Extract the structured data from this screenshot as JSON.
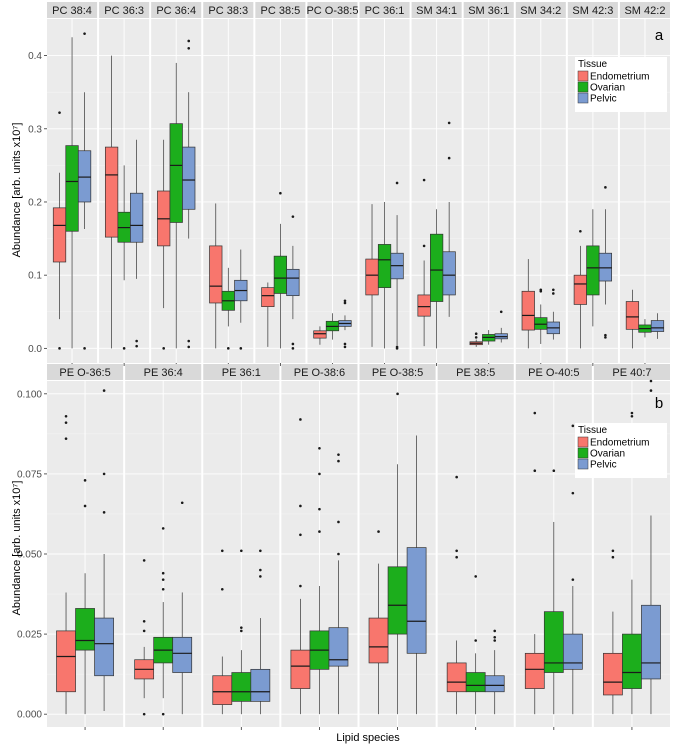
{
  "figure": {
    "xlabel": "Lipid species",
    "legend_title": "Tissue",
    "tissues": [
      "Endometrium",
      "Ovarian",
      "Pelvic"
    ],
    "colors": {
      "Endometrium": "#f8766d",
      "Ovarian": "#1cae1c",
      "Pelvic": "#7b9bd1"
    }
  },
  "chart_data": [
    {
      "type": "boxplot",
      "panel_label": "a",
      "ylabel": "Abundance [arb. units x10⁷]",
      "ylim": [
        -0.02,
        0.45
      ],
      "yticks": [
        0.0,
        0.1,
        0.2,
        0.3,
        0.4
      ],
      "ytick_labels": [
        "0.0",
        "0.1",
        "0.2",
        "0.3",
        "0.4"
      ],
      "facets": [
        {
          "name": "PC 38:4",
          "boxes": [
            {
              "tissue": "Endometrium",
              "min": 0.04,
              "q1": 0.118,
              "median": 0.168,
              "q3": 0.192,
              "max": 0.24,
              "outliers": [
                0.322,
                0.0
              ]
            },
            {
              "tissue": "Ovarian",
              "min": 0.0,
              "q1": 0.16,
              "median": 0.228,
              "q3": 0.277,
              "max": 0.425,
              "outliers": []
            },
            {
              "tissue": "Pelvic",
              "min": 0.163,
              "q1": 0.2,
              "median": 0.234,
              "q3": 0.27,
              "max": 0.35,
              "outliers": [
                0.43,
                0.0
              ]
            }
          ]
        },
        {
          "name": "PC 36:3",
          "boxes": [
            {
              "tissue": "Endometrium",
              "min": 0.0,
              "q1": 0.152,
              "median": 0.237,
              "q3": 0.275,
              "max": 0.4,
              "outliers": []
            },
            {
              "tissue": "Ovarian",
              "min": 0.093,
              "q1": 0.145,
              "median": 0.165,
              "q3": 0.186,
              "max": 0.25,
              "outliers": [
                0.0
              ]
            },
            {
              "tissue": "Pelvic",
              "min": 0.095,
              "q1": 0.145,
              "median": 0.168,
              "q3": 0.212,
              "max": 0.285,
              "outliers": [
                0.01,
                0.003
              ]
            }
          ]
        },
        {
          "name": "PC 36:4",
          "boxes": [
            {
              "tissue": "Endometrium",
              "min": 0.055,
              "q1": 0.14,
              "median": 0.177,
              "q3": 0.215,
              "max": 0.285,
              "outliers": [
                0.0
              ]
            },
            {
              "tissue": "Ovarian",
              "min": 0.0,
              "q1": 0.172,
              "median": 0.25,
              "q3": 0.307,
              "max": 0.39,
              "outliers": []
            },
            {
              "tissue": "Pelvic",
              "min": 0.15,
              "q1": 0.19,
              "median": 0.23,
              "q3": 0.275,
              "max": 0.35,
              "outliers": [
                0.42,
                0.41,
                0.01,
                0.002
              ]
            }
          ]
        },
        {
          "name": "PC 38:3",
          "boxes": [
            {
              "tissue": "Endometrium",
              "min": 0.0,
              "q1": 0.062,
              "median": 0.085,
              "q3": 0.14,
              "max": 0.198,
              "outliers": []
            },
            {
              "tissue": "Ovarian",
              "min": 0.03,
              "q1": 0.052,
              "median": 0.065,
              "q3": 0.078,
              "max": 0.11,
              "outliers": [
                0.0
              ]
            },
            {
              "tissue": "Pelvic",
              "min": 0.035,
              "q1": 0.065,
              "median": 0.079,
              "q3": 0.093,
              "max": 0.135,
              "outliers": [
                0.0
              ]
            }
          ]
        },
        {
          "name": "PC 38:5",
          "boxes": [
            {
              "tissue": "Endometrium",
              "min": 0.002,
              "q1": 0.057,
              "median": 0.072,
              "q3": 0.083,
              "max": 0.09,
              "outliers": []
            },
            {
              "tissue": "Ovarian",
              "min": 0.0,
              "q1": 0.075,
              "median": 0.096,
              "q3": 0.126,
              "max": 0.17,
              "outliers": [
                0.212
              ]
            },
            {
              "tissue": "Pelvic",
              "min": 0.04,
              "q1": 0.072,
              "median": 0.096,
              "q3": 0.108,
              "max": 0.14,
              "outliers": [
                0.18,
                0.006,
                0.0
              ]
            }
          ]
        },
        {
          "name": "PC O-38:5",
          "boxes": [
            {
              "tissue": "Endometrium",
              "min": 0.005,
              "q1": 0.014,
              "median": 0.02,
              "q3": 0.024,
              "max": 0.03,
              "outliers": []
            },
            {
              "tissue": "Ovarian",
              "min": 0.012,
              "q1": 0.024,
              "median": 0.03,
              "q3": 0.037,
              "max": 0.048,
              "outliers": []
            },
            {
              "tissue": "Pelvic",
              "min": 0.025,
              "q1": 0.03,
              "median": 0.034,
              "q3": 0.038,
              "max": 0.045,
              "outliers": [
                0.065,
                0.062,
                0.006,
                0.002
              ]
            }
          ]
        },
        {
          "name": "PC 36:1",
          "boxes": [
            {
              "tissue": "Endometrium",
              "min": 0.002,
              "q1": 0.073,
              "median": 0.1,
              "q3": 0.122,
              "max": 0.197,
              "outliers": []
            },
            {
              "tissue": "Ovarian",
              "min": 0.0,
              "q1": 0.083,
              "median": 0.121,
              "q3": 0.142,
              "max": 0.2,
              "outliers": []
            },
            {
              "tissue": "Pelvic",
              "min": 0.004,
              "q1": 0.095,
              "median": 0.113,
              "q3": 0.13,
              "max": 0.182,
              "outliers": [
                0.226,
                0.002,
                0.0
              ]
            }
          ]
        },
        {
          "name": "SM 34:1",
          "boxes": [
            {
              "tissue": "Endometrium",
              "min": 0.003,
              "q1": 0.044,
              "median": 0.057,
              "q3": 0.073,
              "max": 0.12,
              "outliers": [
                0.23,
                0.14
              ]
            },
            {
              "tissue": "Ovarian",
              "min": 0.0,
              "q1": 0.064,
              "median": 0.107,
              "q3": 0.156,
              "max": 0.19,
              "outliers": []
            },
            {
              "tissue": "Pelvic",
              "min": 0.043,
              "q1": 0.073,
              "median": 0.1,
              "q3": 0.132,
              "max": 0.2,
              "outliers": [
                0.308,
                0.26
              ]
            }
          ]
        },
        {
          "name": "SM 36:1",
          "boxes": [
            {
              "tissue": "Endometrium",
              "min": 0.002,
              "q1": 0.005,
              "median": 0.007,
              "q3": 0.009,
              "max": 0.012,
              "outliers": [
                0.02,
                0.015
              ]
            },
            {
              "tissue": "Ovarian",
              "min": 0.005,
              "q1": 0.01,
              "median": 0.015,
              "q3": 0.019,
              "max": 0.025,
              "outliers": []
            },
            {
              "tissue": "Pelvic",
              "min": 0.008,
              "q1": 0.013,
              "median": 0.016,
              "q3": 0.02,
              "max": 0.028,
              "outliers": [
                0.05
              ]
            }
          ]
        },
        {
          "name": "SM 34:2",
          "boxes": [
            {
              "tissue": "Endometrium",
              "min": 0.0,
              "q1": 0.025,
              "median": 0.045,
              "q3": 0.078,
              "max": 0.122,
              "outliers": []
            },
            {
              "tissue": "Ovarian",
              "min": 0.006,
              "q1": 0.026,
              "median": 0.033,
              "q3": 0.042,
              "max": 0.06,
              "outliers": [
                0.08,
                0.078
              ]
            },
            {
              "tissue": "Pelvic",
              "min": 0.012,
              "q1": 0.02,
              "median": 0.028,
              "q3": 0.036,
              "max": 0.05,
              "outliers": [
                0.08,
                0.075
              ]
            }
          ]
        },
        {
          "name": "SM 42:3",
          "boxes": [
            {
              "tissue": "Endometrium",
              "min": 0.0,
              "q1": 0.06,
              "median": 0.088,
              "q3": 0.1,
              "max": 0.14,
              "outliers": [
                0.16
              ]
            },
            {
              "tissue": "Ovarian",
              "min": 0.03,
              "q1": 0.073,
              "median": 0.11,
              "q3": 0.14,
              "max": 0.19,
              "outliers": []
            },
            {
              "tissue": "Pelvic",
              "min": 0.06,
              "q1": 0.092,
              "median": 0.11,
              "q3": 0.13,
              "max": 0.19,
              "outliers": [
                0.22,
                0.018,
                0.015
              ]
            }
          ]
        },
        {
          "name": "SM 42:2",
          "boxes": [
            {
              "tissue": "Endometrium",
              "min": 0.0,
              "q1": 0.026,
              "median": 0.043,
              "q3": 0.064,
              "max": 0.08,
              "outliers": []
            },
            {
              "tissue": "Ovarian",
              "min": 0.015,
              "q1": 0.022,
              "median": 0.027,
              "q3": 0.032,
              "max": 0.04,
              "outliers": []
            },
            {
              "tissue": "Pelvic",
              "min": 0.013,
              "q1": 0.023,
              "median": 0.028,
              "q3": 0.038,
              "max": 0.048,
              "outliers": []
            }
          ]
        }
      ]
    },
    {
      "type": "boxplot",
      "panel_label": "b",
      "ylabel": "Abundance [arb. units x10⁷]",
      "ylim": [
        -0.004,
        0.104
      ],
      "yticks": [
        0.0,
        0.025,
        0.05,
        0.075,
        0.1
      ],
      "ytick_labels": [
        "0.000",
        "0.025",
        "0.050",
        "0.075",
        "0.100"
      ],
      "facets": [
        {
          "name": "PE O-36:5",
          "boxes": [
            {
              "tissue": "Endometrium",
              "min": 0.0,
              "q1": 0.007,
              "median": 0.018,
              "q3": 0.026,
              "max": 0.038,
              "outliers": [
                0.093,
                0.091,
                0.086
              ]
            },
            {
              "tissue": "Ovarian",
              "min": 0.0,
              "q1": 0.02,
              "median": 0.023,
              "q3": 0.033,
              "max": 0.044,
              "outliers": [
                0.073,
                0.065
              ]
            },
            {
              "tissue": "Pelvic",
              "min": 0.001,
              "q1": 0.012,
              "median": 0.022,
              "q3": 0.03,
              "max": 0.05,
              "outliers": [
                0.101,
                0.075,
                0.063
              ]
            }
          ]
        },
        {
          "name": "PE 36:4",
          "boxes": [
            {
              "tissue": "Endometrium",
              "min": 0.005,
              "q1": 0.011,
              "median": 0.014,
              "q3": 0.017,
              "max": 0.021,
              "outliers": [
                0.048,
                0.029,
                0.026,
                0.0
              ]
            },
            {
              "tissue": "Ovarian",
              "min": 0.005,
              "q1": 0.016,
              "median": 0.02,
              "q3": 0.024,
              "max": 0.035,
              "outliers": [
                0.058,
                0.044,
                0.042,
                0.039,
                0.0
              ]
            },
            {
              "tissue": "Pelvic",
              "min": 0.0,
              "q1": 0.013,
              "median": 0.019,
              "q3": 0.024,
              "max": 0.038,
              "outliers": [
                0.066
              ]
            }
          ]
        },
        {
          "name": "PE 36:1",
          "boxes": [
            {
              "tissue": "Endometrium",
              "min": 0.0,
              "q1": 0.003,
              "median": 0.007,
              "q3": 0.012,
              "max": 0.018,
              "outliers": [
                0.051,
                0.039
              ]
            },
            {
              "tissue": "Ovarian",
              "min": 0.0,
              "q1": 0.004,
              "median": 0.007,
              "q3": 0.013,
              "max": 0.02,
              "outliers": [
                0.051,
                0.027,
                0.026
              ]
            },
            {
              "tissue": "Pelvic",
              "min": 0.0,
              "q1": 0.004,
              "median": 0.007,
              "q3": 0.014,
              "max": 0.03,
              "outliers": [
                0.051,
                0.045,
                0.043
              ]
            }
          ]
        },
        {
          "name": "PE O-38:6",
          "boxes": [
            {
              "tissue": "Endometrium",
              "min": 0.0,
              "q1": 0.008,
              "median": 0.015,
              "q3": 0.02,
              "max": 0.036,
              "outliers": [
                0.092,
                0.065,
                0.056,
                0.04
              ]
            },
            {
              "tissue": "Ovarian",
              "min": 0.0,
              "q1": 0.014,
              "median": 0.02,
              "q3": 0.026,
              "max": 0.04,
              "outliers": [
                0.083,
                0.075,
                0.064,
                0.057
              ]
            },
            {
              "tissue": "Pelvic",
              "min": 0.0,
              "q1": 0.015,
              "median": 0.017,
              "q3": 0.027,
              "max": 0.048,
              "outliers": [
                0.081,
                0.079,
                0.06,
                0.05
              ]
            }
          ]
        },
        {
          "name": "PE O-38:5",
          "boxes": [
            {
              "tissue": "Endometrium",
              "min": 0.0,
              "q1": 0.016,
              "median": 0.021,
              "q3": 0.03,
              "max": 0.047,
              "outliers": [
                0.057
              ]
            },
            {
              "tissue": "Ovarian",
              "min": 0.0,
              "q1": 0.025,
              "median": 0.034,
              "q3": 0.046,
              "max": 0.078,
              "outliers": [
                0.1
              ]
            },
            {
              "tissue": "Pelvic",
              "min": 0.0,
              "q1": 0.019,
              "median": 0.029,
              "q3": 0.052,
              "max": 0.087,
              "outliers": []
            }
          ]
        },
        {
          "name": "PE 38:5",
          "boxes": [
            {
              "tissue": "Endometrium",
              "min": 0.0,
              "q1": 0.007,
              "median": 0.01,
              "q3": 0.016,
              "max": 0.023,
              "outliers": [
                0.074,
                0.051,
                0.049
              ]
            },
            {
              "tissue": "Ovarian",
              "min": 0.0,
              "q1": 0.007,
              "median": 0.009,
              "q3": 0.013,
              "max": 0.019,
              "outliers": [
                0.043,
                0.023
              ]
            },
            {
              "tissue": "Pelvic",
              "min": 0.0,
              "q1": 0.007,
              "median": 0.009,
              "q3": 0.012,
              "max": 0.02,
              "outliers": [
                0.026,
                0.024,
                0.023
              ]
            }
          ]
        },
        {
          "name": "PE O-40:5",
          "boxes": [
            {
              "tissue": "Endometrium",
              "min": 0.0,
              "q1": 0.008,
              "median": 0.014,
              "q3": 0.019,
              "max": 0.025,
              "outliers": [
                0.094,
                0.076
              ]
            },
            {
              "tissue": "Ovarian",
              "min": 0.0,
              "q1": 0.013,
              "median": 0.016,
              "q3": 0.032,
              "max": 0.06,
              "outliers": [
                0.076
              ]
            },
            {
              "tissue": "Pelvic",
              "min": 0.0,
              "q1": 0.014,
              "median": 0.016,
              "q3": 0.025,
              "max": 0.04,
              "outliers": [
                0.09,
                0.069,
                0.042
              ]
            }
          ]
        },
        {
          "name": "PE 40:7",
          "boxes": [
            {
              "tissue": "Endometrium",
              "min": 0.0,
              "q1": 0.006,
              "median": 0.01,
              "q3": 0.019,
              "max": 0.032,
              "outliers": [
                0.051,
                0.049
              ]
            },
            {
              "tissue": "Ovarian",
              "min": 0.0,
              "q1": 0.008,
              "median": 0.013,
              "q3": 0.025,
              "max": 0.042,
              "outliers": [
                0.094,
                0.093
              ]
            },
            {
              "tissue": "Pelvic",
              "min": 0.0,
              "q1": 0.011,
              "median": 0.016,
              "q3": 0.034,
              "max": 0.062,
              "outliers": [
                0.104,
                0.101
              ]
            }
          ]
        }
      ]
    }
  ]
}
